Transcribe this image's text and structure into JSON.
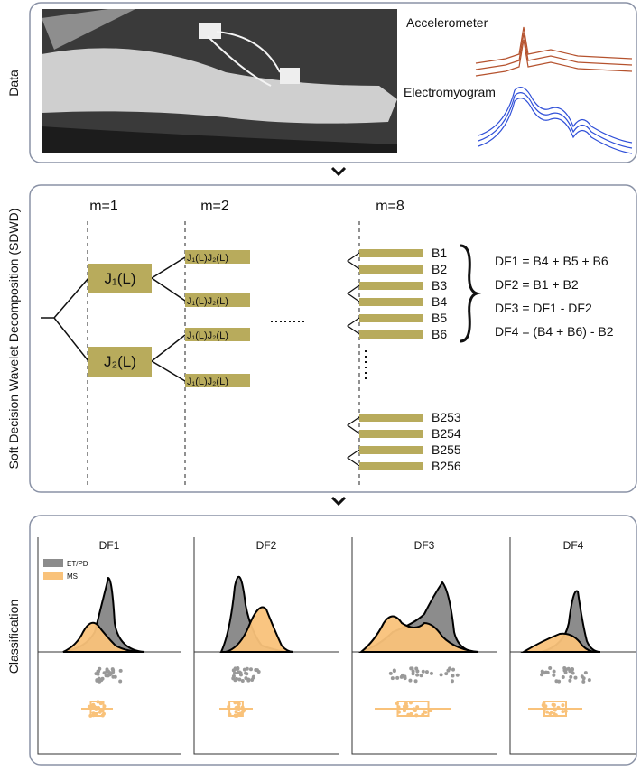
{
  "data_panel": {
    "side_label": "Data",
    "signals": [
      "Accelerometer",
      "Electromyogram"
    ]
  },
  "sdwd_panel": {
    "side_label": "Soft Decision Wavelet Decomposition (SDWD)",
    "levels": [
      "m=1",
      "m=2",
      "m=8"
    ],
    "level1_nodes": [
      "J₁(L)",
      "J₂(L)"
    ],
    "level2_nodes": [
      "J₁(L)J₂(L)",
      "J₁(L)J₂(L)",
      "J₁(L)J₂(L)",
      "J₁(L)J₂(L)"
    ],
    "bands_top": [
      "B1",
      "B2",
      "B3",
      "B4",
      "B5",
      "B6"
    ],
    "bands_bottom": [
      "B253",
      "B254",
      "B255",
      "B256"
    ],
    "formulas": [
      "DF1 = B4 + B5 + B6",
      "DF2 = B1 + B2",
      "DF3 = DF1 - DF2",
      "DF4 = (B4 + B6) - B2"
    ]
  },
  "classification_panel": {
    "side_label": "Classification",
    "plots": [
      "DF1",
      "DF2",
      "DF3",
      "DF4"
    ],
    "legend": [
      {
        "name": "ET/PD",
        "color": "#8c8c8c"
      },
      {
        "name": "MS",
        "color": "#f9c27a"
      }
    ]
  }
}
